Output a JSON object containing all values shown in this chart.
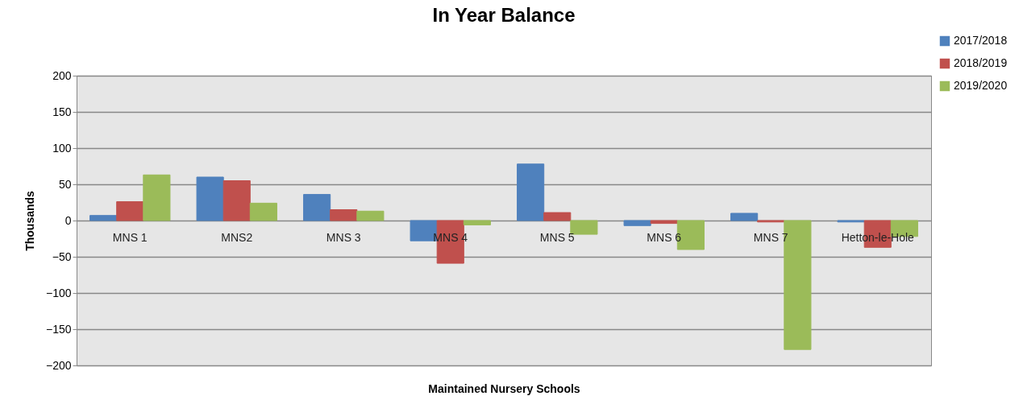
{
  "chart_data": {
    "type": "bar",
    "title": "In Year Balance",
    "xlabel": "Maintained Nursery Schools",
    "ylabel": "Thousands",
    "categories": [
      "MNS 1",
      "MNS2",
      "MNS 3",
      "MNS 4",
      "MNS 5",
      "MNS 6",
      "MNS 7",
      "Hetton-le-Hole"
    ],
    "series": [
      {
        "name": "2017/2018",
        "color": "#4f81bd",
        "values": [
          7,
          60,
          36,
          -28,
          78,
          -7,
          10,
          -2
        ]
      },
      {
        "name": "2018/2019",
        "color": "#c0504d",
        "values": [
          26,
          55,
          15,
          -59,
          11,
          -4,
          -2,
          -37
        ]
      },
      {
        "name": "2019/2020",
        "color": "#9bbb59",
        "values": [
          63,
          24,
          13,
          -6,
          -19,
          -40,
          -178,
          -22
        ]
      }
    ],
    "ylim": [
      -200,
      200
    ],
    "yticks": [
      -200,
      -150,
      -100,
      -50,
      0,
      50,
      100,
      150,
      200
    ],
    "grid": "y",
    "legend": "top right"
  }
}
